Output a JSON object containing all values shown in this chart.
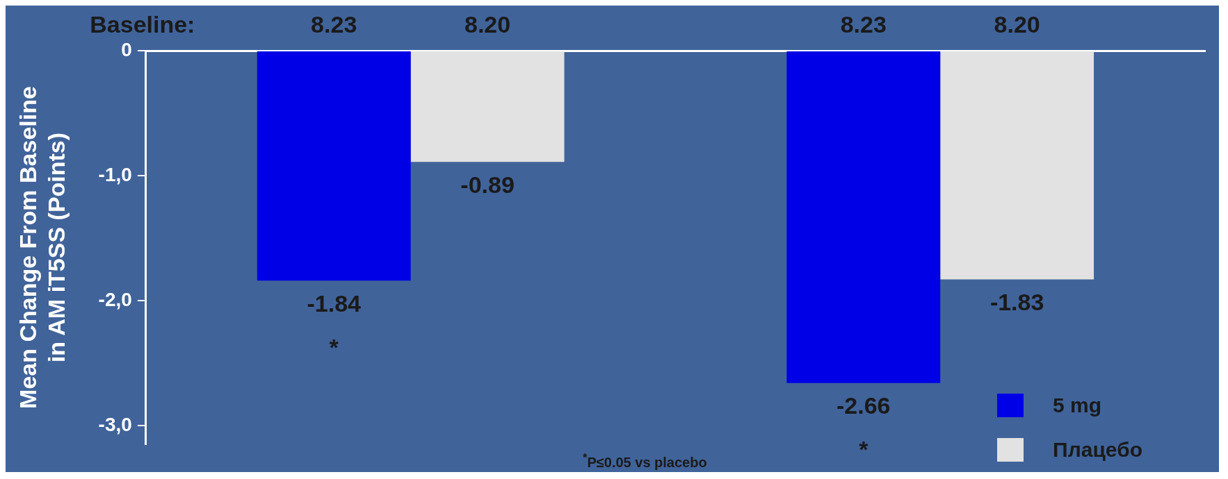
{
  "chart_data": {
    "type": "bar",
    "ylabel": "Mean Change From Baseline\nin AM iT5SS (Points)",
    "categories": [
      null,
      null
    ],
    "series": [
      {
        "name": "5 mg",
        "color": "#0000e6",
        "values": [
          -1.84,
          -2.66
        ]
      },
      {
        "name": "Плацебо",
        "color": "#e2e2e2",
        "values": [
          -0.89,
          -1.83
        ]
      }
    ],
    "ylim": [
      -3.15,
      0
    ],
    "yticks": [
      {
        "value": -3,
        "label": "-3,0"
      },
      {
        "value": -2,
        "label": "-2,0"
      },
      {
        "value": -1,
        "label": "-1,0"
      },
      0
    ],
    "data_labels": true,
    "legend": "bottom right",
    "grid": false,
    "annotations": [
      "Baseline:",
      "8.23",
      "8.20",
      "8.23",
      "8.20",
      "*",
      "*",
      "$^{*}$P≤0.05 vs placebo"
    ]
  }
}
